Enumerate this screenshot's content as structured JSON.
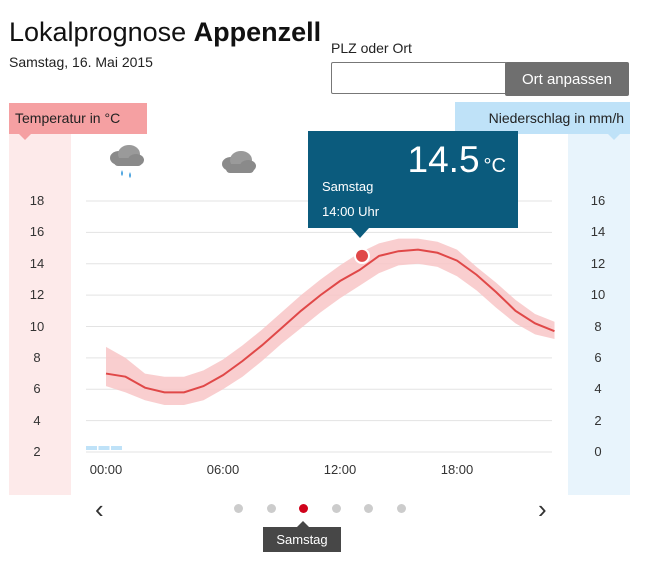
{
  "header": {
    "title_prefix": "Lokalprognose",
    "title_place": "Appenzell",
    "date": "Samstag, 16. Mai 2015"
  },
  "search": {
    "label": "PLZ oder Ort",
    "value": "",
    "placeholder": "",
    "button_label": "Ort anpassen"
  },
  "legend": {
    "temperature": "Temperatur in °C",
    "precipitation": "Niederschlag in mm/h"
  },
  "weather_icons": [
    "cloud-rain-icon",
    "cloud-icon"
  ],
  "tooltip": {
    "value": "14.5",
    "unit": "°C",
    "day": "Samstag",
    "time": "14:00 Uhr"
  },
  "carousel": {
    "active_index": 2,
    "count": 6,
    "active_label": "Samstag",
    "prev": "‹",
    "next": "›"
  },
  "colors": {
    "temperature_line": "#e04848",
    "temperature_band": "#f8c5c7",
    "precip_bar": "#bfe2f8",
    "tooltip_bg": "#0b5b7d",
    "active_dot": "#d0021b"
  },
  "chart_data": {
    "type": "line",
    "x_ticks": [
      "00:00",
      "06:00",
      "12:00",
      "18:00"
    ],
    "y_left_ticks": [
      2,
      4,
      6,
      8,
      10,
      12,
      14,
      16,
      18
    ],
    "y_right_ticks": [
      0,
      2,
      4,
      6,
      8,
      10,
      12,
      14,
      16
    ],
    "x_hours": [
      0,
      1,
      2,
      3,
      4,
      5,
      6,
      7,
      8,
      9,
      10,
      11,
      12,
      13,
      14,
      15,
      16,
      17,
      18,
      19,
      20,
      21,
      22,
      23
    ],
    "temperature": [
      7.0,
      6.8,
      6.1,
      5.8,
      5.8,
      6.2,
      6.9,
      7.8,
      8.8,
      9.9,
      11.0,
      12.0,
      12.9,
      13.6,
      14.5,
      14.8,
      14.9,
      14.7,
      14.2,
      13.3,
      12.2,
      11.0,
      10.2,
      9.7
    ],
    "temperature_upper": [
      8.7,
      8.0,
      7.0,
      6.8,
      6.8,
      7.2,
      7.9,
      8.8,
      9.8,
      10.9,
      12.0,
      13.0,
      13.9,
      14.7,
      15.3,
      15.6,
      15.6,
      15.4,
      14.9,
      13.8,
      12.8,
      11.7,
      10.8,
      10.3
    ],
    "temperature_lower": [
      6.2,
      5.8,
      5.3,
      5.0,
      5.0,
      5.3,
      6.0,
      6.8,
      7.8,
      8.9,
      9.9,
      10.9,
      11.8,
      12.6,
      13.4,
      13.9,
      14.0,
      13.8,
      13.2,
      12.3,
      11.2,
      10.2,
      9.5,
      9.2
    ],
    "precipitation": [
      0.2,
      0.2,
      0.2,
      0,
      0,
      0,
      0,
      0,
      0,
      0,
      0,
      0,
      0,
      0,
      0,
      0,
      0,
      0,
      0,
      0,
      0,
      0,
      0,
      0
    ],
    "highlight": {
      "x": 14,
      "y": 14.5
    },
    "y_left_range": [
      0,
      18
    ],
    "y_right_range": [
      -2,
      16
    ],
    "grid": true
  }
}
